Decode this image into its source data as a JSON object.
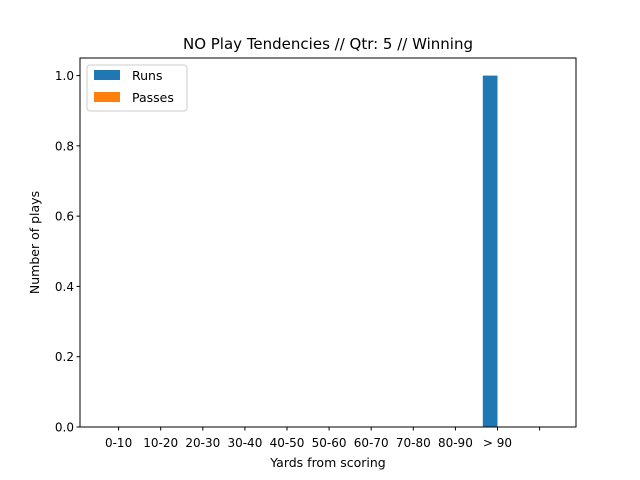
{
  "chart_data": {
    "type": "bar",
    "title": "NO Play Tendencies // Qtr: 5 // Winning",
    "xlabel": "Yards from scoring",
    "ylabel": "Number of plays",
    "categories": [
      "0-10",
      "10-20",
      "20-30",
      "30-40",
      "40-50",
      "50-60",
      "60-70",
      "70-80",
      "80-90",
      "> 90",
      ""
    ],
    "series": [
      {
        "name": "Runs",
        "color": "#1f77b4",
        "values": [
          0,
          0,
          0,
          0,
          0,
          0,
          0,
          0,
          0,
          1,
          0
        ]
      },
      {
        "name": "Passes",
        "color": "#ff7f0e",
        "values": [
          0,
          0,
          0,
          0,
          0,
          0,
          0,
          0,
          0,
          0,
          0
        ]
      }
    ],
    "ylim": [
      0,
      1.05
    ],
    "yticks": [
      "0.0",
      "0.2",
      "0.4",
      "0.6",
      "0.8",
      "1.0"
    ],
    "legend_position": "top-left",
    "grid": false
  }
}
